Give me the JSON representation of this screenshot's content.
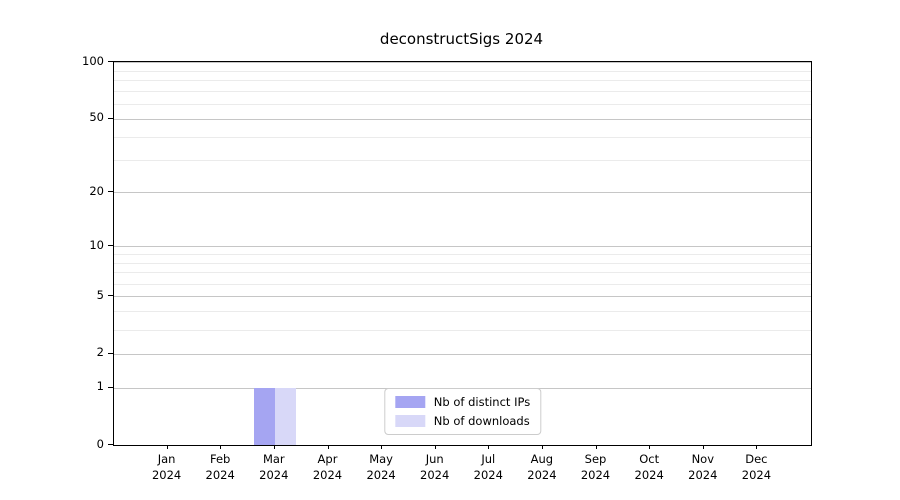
{
  "chart_data": {
    "type": "bar",
    "title": "deconstructSigs 2024",
    "categories": [
      "Jan 2024",
      "Feb 2024",
      "Mar 2024",
      "Apr 2024",
      "May 2024",
      "Jun 2024",
      "Jul 2024",
      "Aug 2024",
      "Sep 2024",
      "Oct 2024",
      "Nov 2024",
      "Dec 2024"
    ],
    "series": [
      {
        "name": "Nb of distinct IPs",
        "color": "#a5a5f2",
        "values": [
          0,
          0,
          1,
          0,
          0,
          0,
          0,
          0,
          0,
          0,
          0,
          0
        ]
      },
      {
        "name": "Nb of downloads",
        "color": "#d8d8f8",
        "values": [
          0,
          0,
          1,
          0,
          0,
          0,
          0,
          0,
          0,
          0,
          0,
          0
        ]
      }
    ],
    "xlabel": "",
    "ylabel": "",
    "ylim": [
      0,
      100
    ],
    "yscale": "log1p",
    "yticks": [
      0,
      1,
      2,
      5,
      10,
      20,
      50,
      100
    ],
    "yticks_minor": [
      3,
      4,
      6,
      7,
      8,
      9,
      30,
      40,
      60,
      70,
      80,
      90
    ],
    "grid": "horizontal",
    "legend_position": "inside-bottom-center"
  },
  "colors": {
    "major_grid": "#c6c6c6",
    "minor_grid": "#ebebeb",
    "axis": "#000000",
    "text": "#000000",
    "legend_border": "#cccccc",
    "background": "#ffffff"
  }
}
